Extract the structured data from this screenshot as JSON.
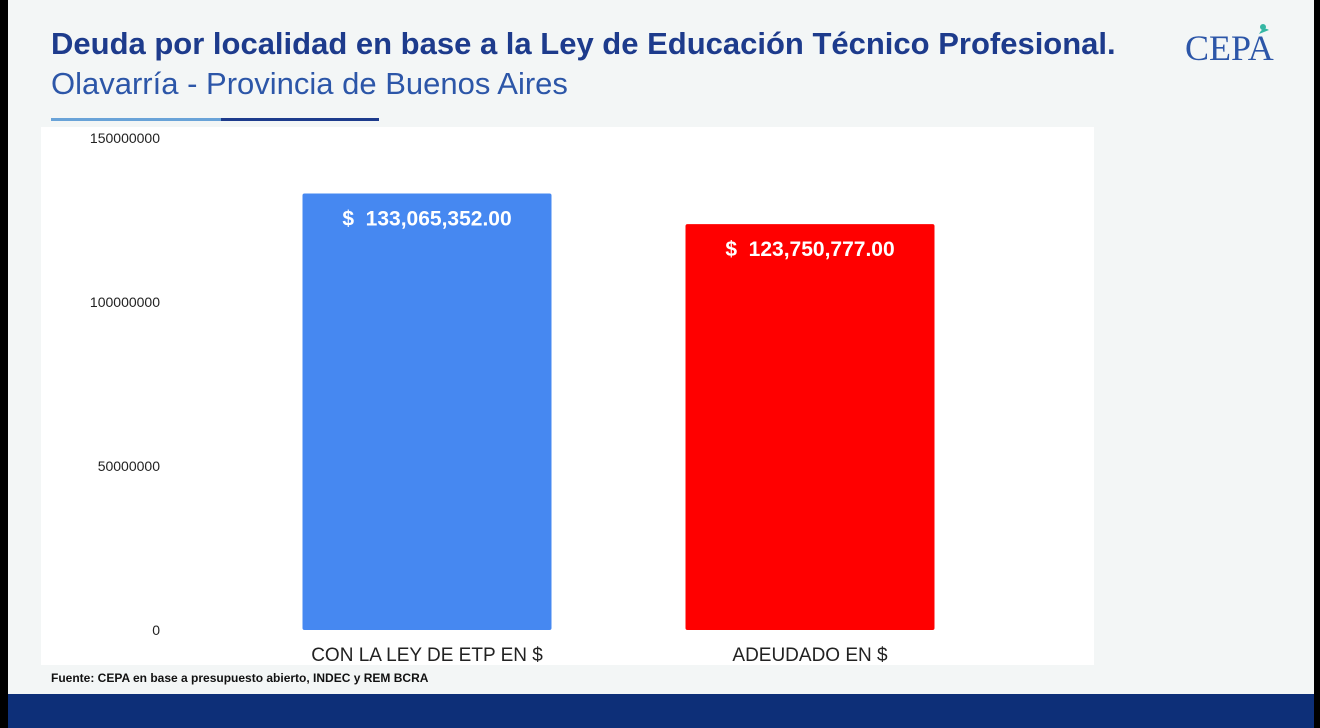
{
  "header": {
    "title": "Deuda por localidad en base a la Ley de Educación Técnico Profesional.",
    "subtitle": "Olavarría - Provincia de Buenos Aires",
    "logo_text": "CEPA"
  },
  "chart_data": {
    "type": "bar",
    "categories": [
      "CON LA LEY DE ETP EN $",
      "ADEUDADO EN $"
    ],
    "values": [
      133065352,
      123750777
    ],
    "data_labels": [
      "$  133,065,352.00",
      "$  123,750,777.00"
    ],
    "bar_colors": [
      "#4688f1",
      "#ff0000"
    ],
    "ylim": [
      0,
      150000000
    ],
    "yticks": [
      0,
      50000000,
      100000000,
      150000000
    ],
    "ytick_labels": [
      "0",
      "50000000",
      "100000000",
      "150000000"
    ],
    "grid": false,
    "legend": "none"
  },
  "footer": {
    "source": "Fuente: CEPA en base a presupuesto abierto, INDEC y REM BCRA",
    "bar_color": "#0d2f78"
  }
}
